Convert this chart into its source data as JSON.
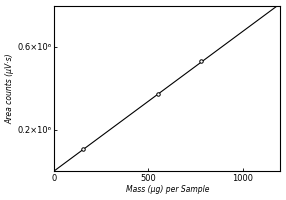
{
  "xlabel": "Mass (μg) per Sample",
  "ylabel": "Area counts (μV·s)",
  "xlim": [
    0,
    1200
  ],
  "ylim": [
    0,
    800000.0
  ],
  "yticks": [
    200000,
    600000
  ],
  "ytick_labels": [
    "0.2×10⁶",
    "0.6×10⁶"
  ],
  "xticks": [
    0,
    500,
    1000
  ],
  "xtick_labels": [
    "0",
    "500",
    "1000"
  ],
  "data_points_x": [
    150,
    550,
    780
  ],
  "data_points_y": [
    105000,
    370000,
    530000
  ],
  "line_x": [
    0,
    1200
  ],
  "line_y": [
    0,
    810000
  ],
  "line_color": "#000000",
  "marker_facecolor": "#ffffff",
  "marker_edgecolor": "#000000",
  "background_color": "#ffffff",
  "line_style": "solid",
  "line_width": 0.8,
  "marker_size": 2.5
}
